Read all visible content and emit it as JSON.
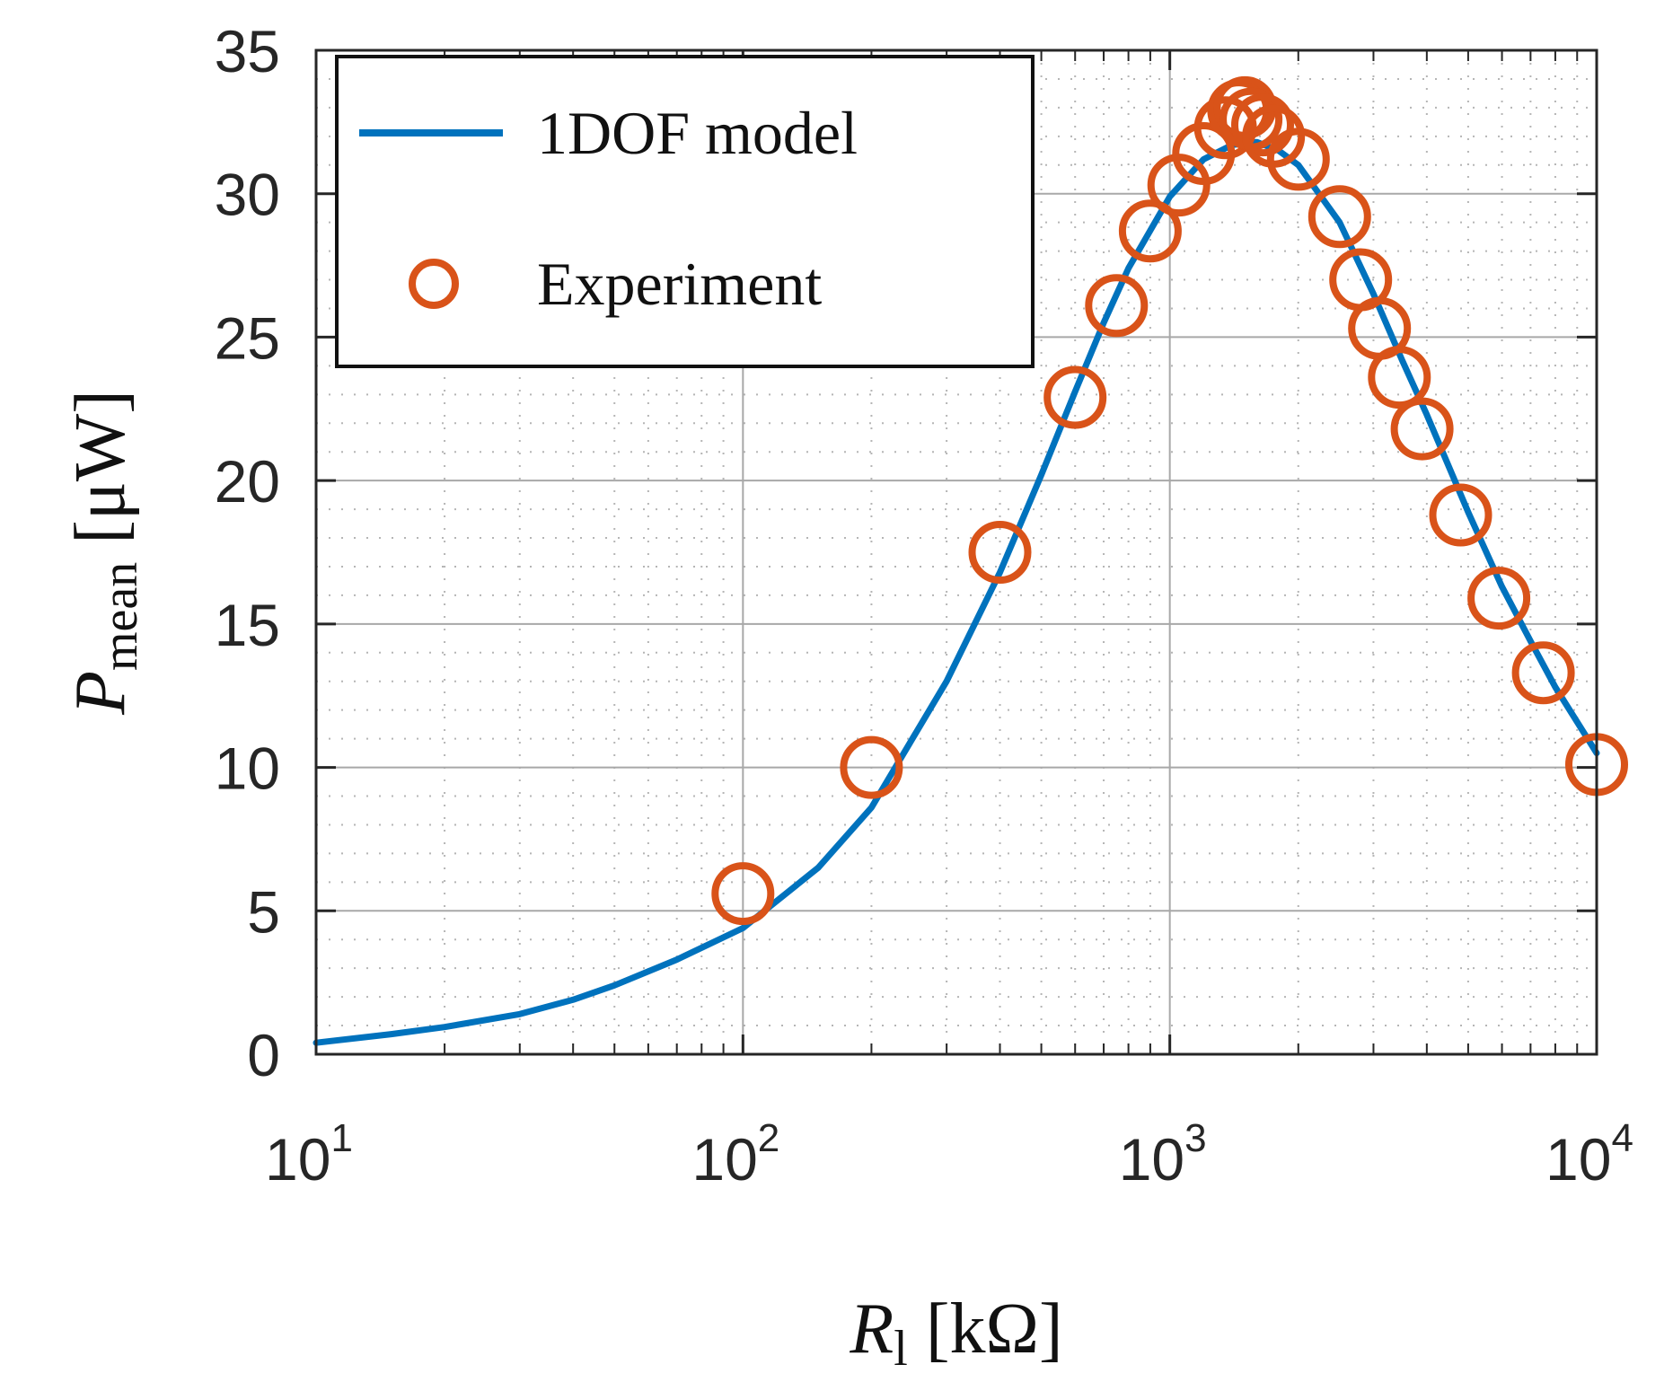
{
  "chart_data": {
    "type": "line",
    "xscale": "log",
    "xlim": [
      10,
      10000
    ],
    "ylim": [
      0,
      35
    ],
    "grid": true,
    "minor_grid": true,
    "legend_position": "top-left",
    "x_ticks": [
      {
        "value": 10,
        "base": "10",
        "exp": "1"
      },
      {
        "value": 100,
        "base": "10",
        "exp": "2"
      },
      {
        "value": 1000,
        "base": "10",
        "exp": "3"
      },
      {
        "value": 10000,
        "base": "10",
        "exp": "4"
      }
    ],
    "y_ticks": [
      "0",
      "5",
      "10",
      "15",
      "20",
      "25",
      "30",
      "35"
    ],
    "xlabel": {
      "symbol": "R",
      "subscript": "l",
      "unit": "[kΩ]"
    },
    "ylabel": {
      "symbol": "P",
      "subscript": "mean",
      "unit": "[μW]"
    },
    "series": [
      {
        "name": "1DOF model",
        "style": "line",
        "color": "#0072BD",
        "x": [
          10,
          15,
          20,
          30,
          40,
          50,
          70,
          100,
          150,
          200,
          300,
          400,
          500,
          600,
          700,
          800,
          1000,
          1200,
          1400,
          1600,
          1800,
          2000,
          2500,
          3000,
          3500,
          4000,
          5000,
          6000,
          7000,
          8000,
          10000
        ],
        "y": [
          0.4,
          0.7,
          0.95,
          1.4,
          1.9,
          2.4,
          3.3,
          4.4,
          6.5,
          8.6,
          13.0,
          16.8,
          20.2,
          23.1,
          25.5,
          27.4,
          29.9,
          31.2,
          31.7,
          31.8,
          31.5,
          31.0,
          29.0,
          26.5,
          24.2,
          22.3,
          18.9,
          16.3,
          14.4,
          12.8,
          10.5
        ]
      },
      {
        "name": "Experiment",
        "style": "markers",
        "marker": "circle",
        "color": "#D95319",
        "x": [
          100,
          200,
          400,
          600,
          750,
          900,
          1050,
          1200,
          1350,
          1450,
          1500,
          1550,
          1650,
          1750,
          2000,
          2500,
          2800,
          3100,
          3450,
          3900,
          4800,
          5900,
          7500,
          10000
        ],
        "y": [
          5.6,
          10.0,
          17.5,
          22.9,
          26.1,
          28.7,
          30.3,
          31.4,
          32.3,
          32.9,
          33.0,
          32.6,
          32.4,
          32.0,
          31.2,
          29.2,
          27.0,
          25.3,
          23.6,
          21.8,
          18.8,
          15.9,
          13.3,
          10.1
        ]
      }
    ]
  }
}
